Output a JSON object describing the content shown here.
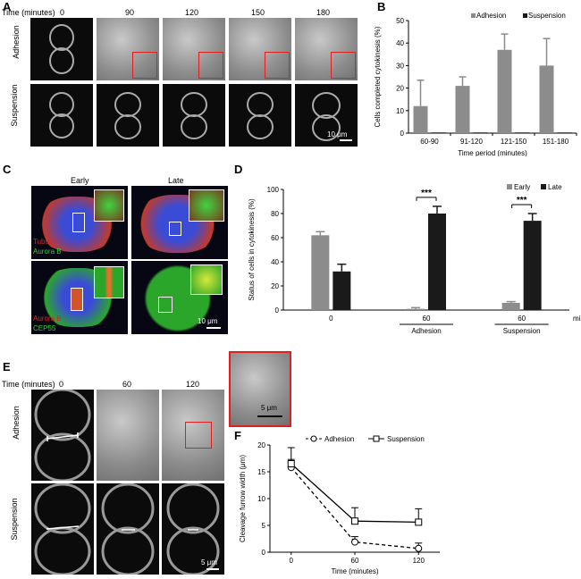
{
  "panel_labels": {
    "a": "A",
    "b": "B",
    "c": "C",
    "d": "D",
    "e": "E",
    "f": "F"
  },
  "panelA": {
    "time_header": "Time (minutes)",
    "times": [
      "0",
      "90",
      "120",
      "150",
      "180"
    ],
    "row_labels": [
      "Adhesion",
      "Suspension"
    ],
    "scale_bar": "10 μm"
  },
  "panelC": {
    "col_labels": [
      "Early",
      "Late"
    ],
    "legend_top": [
      "Tubulin",
      "Aurora B"
    ],
    "legend_bottom": [
      "Aurora B",
      "CEP55"
    ],
    "scale_bar": "10 μm",
    "colors": {
      "red": "#e02020",
      "green": "#33cc33",
      "blue": "#2a3dbf"
    }
  },
  "panelE": {
    "time_header": "Time (minutes)",
    "times": [
      "0",
      "60",
      "120"
    ],
    "row_labels": [
      "Adhesion",
      "Suspension"
    ],
    "scale_bar": "5 μm",
    "inset_scale_bar": "5 μm"
  },
  "chart_data": [
    {
      "id": "B",
      "type": "bar",
      "ylabel": "Cells completed cytokinesis  (%)",
      "xlabel": "Time period  (minutes)",
      "categories": [
        "60-90",
        "91-120",
        "121-150",
        "151-180"
      ],
      "ylim": [
        0,
        50
      ],
      "yticks": [
        "0",
        "10",
        "20",
        "30",
        "40",
        "50"
      ],
      "series": [
        {
          "name": "Adhesion",
          "color": "#8c8c8c",
          "values": [
            12,
            21,
            37,
            30
          ],
          "errors": [
            11.5,
            4,
            7,
            12
          ]
        },
        {
          "name": "Suspension",
          "color": "#1a1a1a",
          "values": [
            0.3,
            0.3,
            0.3,
            0.3
          ],
          "errors": [
            0,
            0,
            0,
            0
          ]
        }
      ],
      "legend": "top-right"
    },
    {
      "id": "D",
      "type": "bar",
      "ylabel": "Status of cells in cytokinesis  (%)",
      "x_unit": "min",
      "categories": [
        "0",
        "60",
        "60"
      ],
      "group_labels": [
        "",
        "Adhesion",
        "Suspension"
      ],
      "ylim": [
        0,
        100
      ],
      "yticks": [
        "0",
        "20",
        "40",
        "60",
        "80",
        "100"
      ],
      "series": [
        {
          "name": "Early",
          "color": "#8c8c8c",
          "values": [
            62,
            1,
            6
          ],
          "errors": [
            3,
            1,
            1
          ]
        },
        {
          "name": "Late",
          "color": "#1a1a1a",
          "values": [
            32,
            80,
            74
          ],
          "errors": [
            6,
            6,
            6
          ]
        }
      ],
      "significance": [
        "***",
        "***"
      ],
      "legend": "top-right"
    },
    {
      "id": "F",
      "type": "line",
      "ylabel": "Cleavage furrow  width (μm)",
      "xlabel": "Time (minutes)",
      "x": [
        0,
        60,
        120
      ],
      "xticks": [
        "0",
        "60",
        "120"
      ],
      "ylim": [
        0,
        20
      ],
      "yticks": [
        "0",
        "5",
        "10",
        "15",
        "20"
      ],
      "series": [
        {
          "name": "Adhesion",
          "values": [
            15.8,
            1.9,
            0.7
          ],
          "errors": [
            1.5,
            1.0,
            1.0
          ],
          "style": "dashed",
          "marker": "circle"
        },
        {
          "name": "Suspension",
          "values": [
            16.5,
            5.8,
            5.6
          ],
          "errors": [
            3.0,
            2.5,
            2.5
          ],
          "style": "solid",
          "marker": "square"
        }
      ],
      "legend": "top-right"
    }
  ]
}
